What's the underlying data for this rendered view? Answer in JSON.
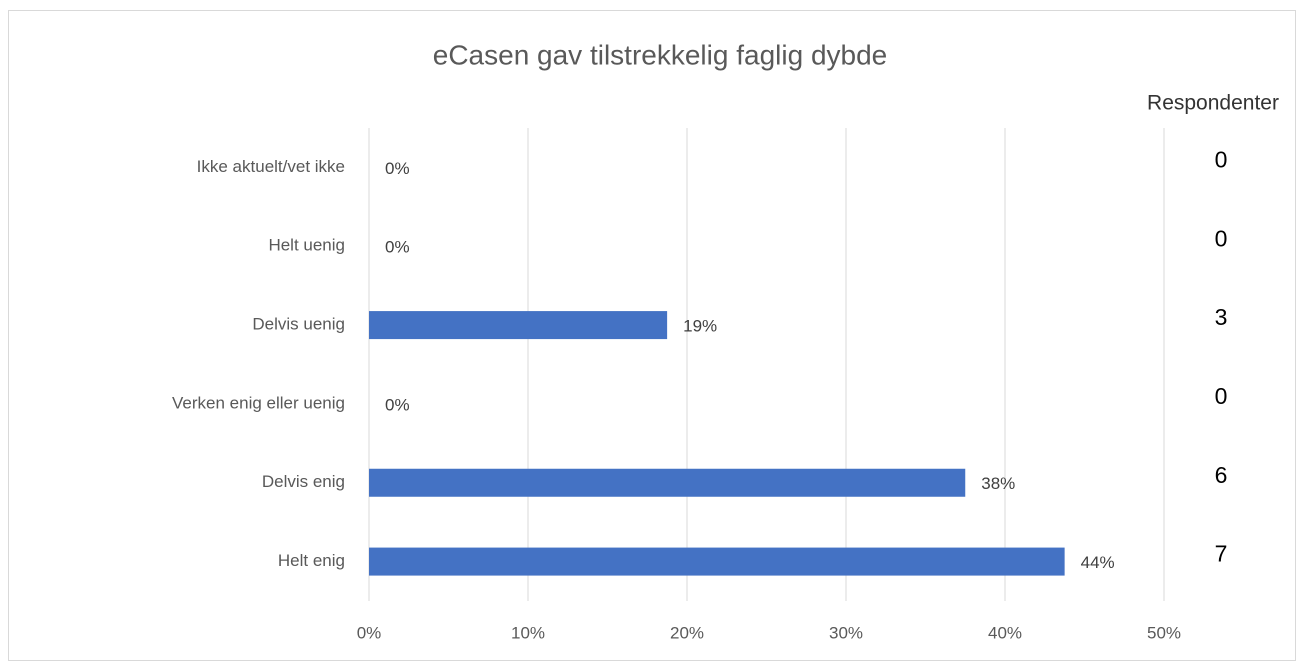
{
  "chart_data": {
    "type": "hbar",
    "title": "eCasen gav tilstrekkelig faglig dybde",
    "categories": [
      "Ikke aktuelt/vet ikke",
      "Helt uenig",
      "Delvis uenig",
      "Verken enig eller uenig",
      "Delvis enig",
      "Helt enig"
    ],
    "values": [
      0,
      0,
      18.75,
      0,
      37.5,
      43.75
    ],
    "value_labels": [
      "0%",
      "0%",
      "19%",
      "0%",
      "38%",
      "44%"
    ],
    "color": "#4472c4",
    "xlim": [
      0,
      50
    ],
    "xticks": [
      {
        "value": 0,
        "label": "0%"
      },
      {
        "value": 10,
        "label": "10%"
      },
      {
        "value": 20,
        "label": "20%"
      },
      {
        "value": 30,
        "label": "30%"
      },
      {
        "value": 40,
        "label": "40%"
      },
      {
        "value": 50,
        "label": "50%"
      }
    ],
    "grid": true,
    "respondents": {
      "title": "Respondenter",
      "values": [
        0,
        0,
        3,
        0,
        6,
        7
      ]
    }
  }
}
